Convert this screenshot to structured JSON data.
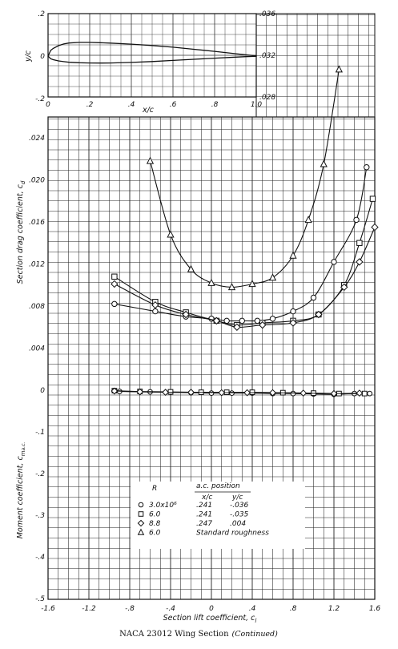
{
  "caption": {
    "main": "NACA 23012 Wing Section",
    "note": "(Continued)"
  },
  "chart_data": [
    {
      "type": "line",
      "name_printed": "",
      "xlabel": "x/c",
      "ylabel": "y/c",
      "xlim": [
        0,
        1.0
      ],
      "ylim": [
        -0.2,
        0.2
      ],
      "x_tick_labels": [
        "0",
        ".2",
        ".4",
        ".6",
        ".8",
        "1.0"
      ],
      "y_tick_labels": [
        ".2",
        "0",
        "-.2"
      ],
      "right_tick_labels": [
        ".036",
        ".032",
        ".028"
      ],
      "grid": true,
      "airfoil_upper": [
        [
          0,
          0
        ],
        [
          0.0125,
          0.0267
        ],
        [
          0.025,
          0.0361
        ],
        [
          0.05,
          0.0491
        ],
        [
          0.075,
          0.0569
        ],
        [
          0.1,
          0.0614
        ],
        [
          0.15,
          0.0645
        ],
        [
          0.2,
          0.0644
        ],
        [
          0.25,
          0.0631
        ],
        [
          0.3,
          0.0612
        ],
        [
          0.4,
          0.0563
        ],
        [
          0.5,
          0.0497
        ],
        [
          0.6,
          0.0417
        ],
        [
          0.7,
          0.0322
        ],
        [
          0.8,
          0.0222
        ],
        [
          0.9,
          0.0115
        ],
        [
          0.95,
          0.0061
        ],
        [
          1.0,
          0.0013
        ]
      ],
      "airfoil_lower": [
        [
          0,
          0
        ],
        [
          0.0125,
          -0.0123
        ],
        [
          0.025,
          -0.0171
        ],
        [
          0.05,
          -0.0226
        ],
        [
          0.075,
          -0.0261
        ],
        [
          0.1,
          -0.0292
        ],
        [
          0.15,
          -0.0315
        ],
        [
          0.2,
          -0.0325
        ],
        [
          0.25,
          -0.0328
        ],
        [
          0.3,
          -0.0324
        ],
        [
          0.4,
          -0.0297
        ],
        [
          0.5,
          -0.0255
        ],
        [
          0.6,
          -0.0204
        ],
        [
          0.7,
          -0.015
        ],
        [
          0.8,
          -0.0097
        ],
        [
          0.9,
          -0.0049
        ],
        [
          0.95,
          -0.0025
        ],
        [
          1.0,
          -0.0013
        ]
      ]
    },
    {
      "type": "line",
      "xlabel": "Section lift coefficient, c",
      "xlabel_sub": "l",
      "xlim": [
        -1.6,
        1.6
      ],
      "x_tick_labels": [
        "-1.6",
        "-1.2",
        "-.8",
        "-.4",
        "0",
        ".4",
        ".8",
        "1.2",
        "1.6"
      ],
      "drag": {
        "ylabel": "Section drag coefficient, c",
        "ylabel_sub": "d",
        "ylim": [
          0,
          0.026
        ],
        "y_tick_labels": [
          ".024",
          ".020",
          ".016",
          ".012",
          ".008",
          ".004",
          "0"
        ],
        "series": [
          {
            "marker": "circle",
            "x": [
              -0.95,
              -0.55,
              -0.25,
              0.0,
              0.15,
              0.3,
              0.45,
              0.6,
              0.8,
              1.0,
              1.2,
              1.42,
              1.52
            ],
            "y": [
              0.0082,
              0.0075,
              0.007,
              0.0068,
              0.0066,
              0.0066,
              0.0066,
              0.0068,
              0.0075,
              0.0088,
              0.0122,
              0.0162,
              0.0212
            ]
          },
          {
            "marker": "square",
            "x": [
              -0.95,
              -0.55,
              -0.25,
              0.05,
              0.25,
              0.5,
              0.8,
              1.05,
              1.3,
              1.45,
              1.58
            ],
            "y": [
              0.0108,
              0.0084,
              0.0074,
              0.0066,
              0.0062,
              0.0064,
              0.0066,
              0.0072,
              0.01,
              0.014,
              0.0182
            ]
          },
          {
            "marker": "diamond",
            "x": [
              -0.95,
              -0.55,
              -0.25,
              0.05,
              0.25,
              0.5,
              0.8,
              1.05,
              1.3,
              1.45,
              1.6
            ],
            "y": [
              0.0101,
              0.0081,
              0.0072,
              0.0066,
              0.006,
              0.0062,
              0.0064,
              0.0072,
              0.0098,
              0.0122,
              0.0155
            ]
          },
          {
            "marker": "triangle",
            "x": [
              -0.6,
              -0.4,
              -0.2,
              0.0,
              0.2,
              0.4,
              0.6,
              0.8,
              0.95,
              1.1,
              1.25
            ],
            "y": [
              0.0218,
              0.0148,
              0.0115,
              0.0102,
              0.0098,
              0.0101,
              0.0107,
              0.0128,
              0.0162,
              0.0215,
              0.0305
            ]
          }
        ]
      },
      "moment": {
        "ylabel": "Moment coefficient, c",
        "ylabel_sub": "m",
        "ylabel_sub2": "a.c.",
        "ylim": [
          -0.5,
          0.0
        ],
        "y_tick_labels": [
          "0",
          "-.1",
          "-.2",
          "-.3",
          "-.4",
          "-.5"
        ],
        "series": [
          {
            "marker": "circle",
            "x": [
              -0.9,
              -0.6,
              -0.4,
              -0.2,
              0.0,
              0.2,
              0.4,
              0.6,
              0.8,
              1.0,
              1.2,
              1.4,
              1.55
            ],
            "y": [
              -0.003,
              -0.004,
              -0.005,
              -0.006,
              -0.007,
              -0.007,
              -0.007,
              -0.008,
              -0.008,
              -0.009,
              -0.01,
              -0.008,
              -0.008
            ]
          },
          {
            "marker": "square",
            "x": [
              -0.95,
              -0.7,
              -0.4,
              -0.1,
              0.15,
              0.4,
              0.7,
              1.0,
              1.25,
              1.5
            ],
            "y": [
              -0.001,
              -0.003,
              -0.004,
              -0.005,
              -0.005,
              -0.005,
              -0.006,
              -0.007,
              -0.008,
              -0.008
            ]
          },
          {
            "marker": "diamond",
            "x": [
              -0.95,
              -0.7,
              -0.45,
              -0.2,
              0.1,
              0.35,
              0.6,
              0.9,
              1.2,
              1.45
            ],
            "y": [
              -0.002,
              -0.004,
              -0.005,
              -0.005,
              -0.006,
              -0.006,
              -0.006,
              -0.007,
              -0.008,
              -0.007
            ]
          }
        ]
      },
      "legend": {
        "header_R": "R",
        "header_ac": "a.c. position",
        "header_xc": "x/c",
        "header_yc": "y/c",
        "placement": "bottom-center",
        "rows": [
          {
            "marker": "circle",
            "R": "3.0x10⁶",
            "xc": ".241",
            "yc": "-.036"
          },
          {
            "marker": "square",
            "R": "6.0",
            "xc": ".241",
            "yc": "-.035"
          },
          {
            "marker": "diamond",
            "R": "8.8",
            "xc": ".247",
            "yc": ".004"
          },
          {
            "marker": "triangle",
            "R": "6.0",
            "xc": "",
            "yc": "",
            "note": "Standard roughness"
          }
        ]
      }
    }
  ]
}
